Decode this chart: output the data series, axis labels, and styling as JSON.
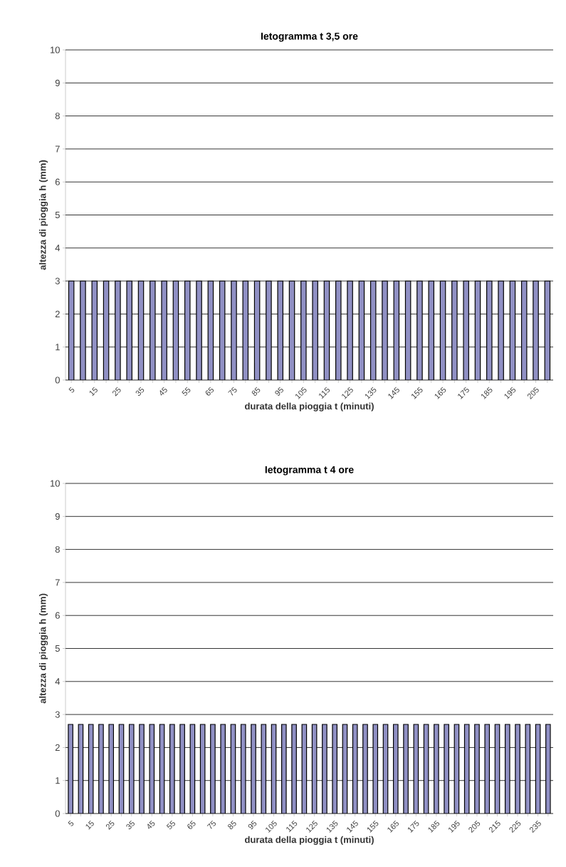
{
  "chart_data": [
    {
      "type": "bar",
      "title": "Ietogramma t 3,5 ore",
      "xlabel": "durata della pioggia t (minuti)",
      "ylabel": "altezza di pioggia h (mm)",
      "categories": [
        "5",
        null,
        "15",
        null,
        "25",
        null,
        "35",
        null,
        "45",
        null,
        "55",
        null,
        "65",
        null,
        "75",
        null,
        "85",
        null,
        "95",
        null,
        "105",
        null,
        "115",
        null,
        "125",
        null,
        "135",
        null,
        "145",
        null,
        "155",
        null,
        "165",
        null,
        "175",
        null,
        "185",
        null,
        "195",
        null,
        "205",
        null
      ],
      "values": [
        3,
        3,
        3,
        3,
        3,
        3,
        3,
        3,
        3,
        3,
        3,
        3,
        3,
        3,
        3,
        3,
        3,
        3,
        3,
        3,
        3,
        3,
        3,
        3,
        3,
        3,
        3,
        3,
        3,
        3,
        3,
        3,
        3,
        3,
        3,
        3,
        3,
        3,
        3,
        3,
        3,
        3
      ],
      "color": "#9090c4",
      "ylim": [
        0,
        10
      ],
      "yticks": [
        0,
        1,
        2,
        3,
        4,
        5,
        6,
        7,
        8,
        9,
        10
      ],
      "grid": "y"
    },
    {
      "type": "bar",
      "title": "Ietogramma t 4 ore",
      "xlabel": "durata della pioggia t (minuti)",
      "ylabel": "altezza di pioggia h (mm)",
      "categories": [
        "5",
        null,
        "15",
        null,
        "25",
        null,
        "35",
        null,
        "45",
        null,
        "55",
        null,
        "65",
        null,
        "75",
        null,
        "85",
        null,
        "95",
        null,
        "105",
        null,
        "115",
        null,
        "125",
        null,
        "135",
        null,
        "145",
        null,
        "155",
        null,
        "165",
        null,
        "175",
        null,
        "185",
        null,
        "195",
        null,
        "205",
        null,
        "215",
        null,
        "225",
        null,
        "235",
        null
      ],
      "values": [
        2.7,
        2.7,
        2.7,
        2.7,
        2.7,
        2.7,
        2.7,
        2.7,
        2.7,
        2.7,
        2.7,
        2.7,
        2.7,
        2.7,
        2.7,
        2.7,
        2.7,
        2.7,
        2.7,
        2.7,
        2.7,
        2.7,
        2.7,
        2.7,
        2.7,
        2.7,
        2.7,
        2.7,
        2.7,
        2.7,
        2.7,
        2.7,
        2.7,
        2.7,
        2.7,
        2.7,
        2.7,
        2.7,
        2.7,
        2.7,
        2.7,
        2.7,
        2.7,
        2.7,
        2.7,
        2.7,
        2.7,
        2.7
      ],
      "color": "#9090c4",
      "ylim": [
        0,
        10
      ],
      "yticks": [
        0,
        1,
        2,
        3,
        4,
        5,
        6,
        7,
        8,
        9,
        10
      ],
      "grid": "y"
    }
  ]
}
